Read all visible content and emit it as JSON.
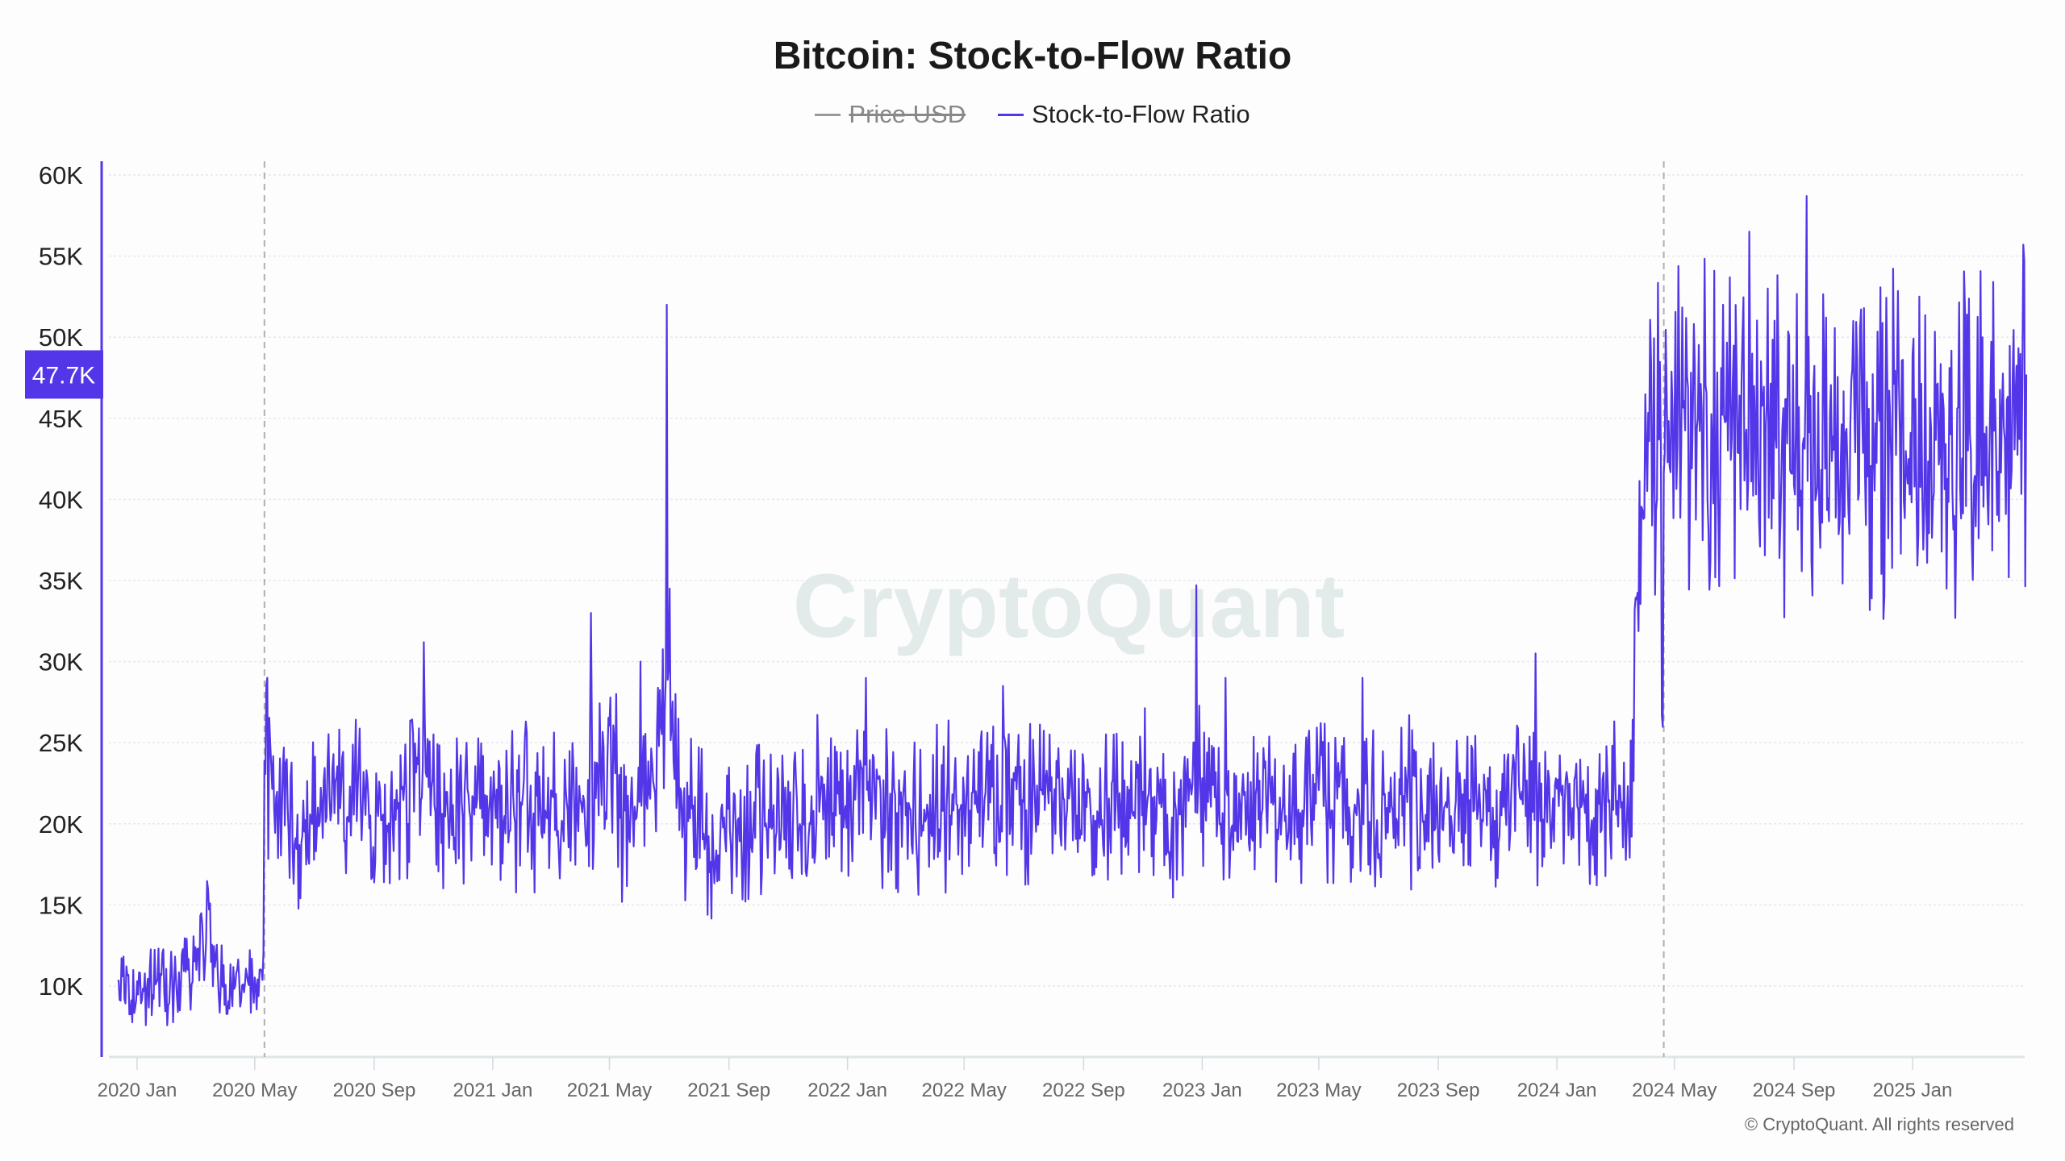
{
  "chart_data": {
    "type": "line",
    "title": "Bitcoin: Stock-to-Flow Ratio",
    "legend": [
      {
        "name": "Price USD",
        "color": "#9a9a9a",
        "hidden": true
      },
      {
        "name": "Stock-to-Flow Ratio",
        "color": "#5236e8",
        "hidden": false
      }
    ],
    "legend_placement": "top-center",
    "ylim": [
      5600,
      61000
    ],
    "y_ticks": [
      10000,
      15000,
      20000,
      25000,
      30000,
      35000,
      40000,
      45000,
      50000,
      55000,
      60000
    ],
    "y_tick_labels": [
      "10K",
      "15K",
      "20K",
      "25K",
      "30K",
      "35K",
      "40K",
      "45K",
      "50K",
      "55K",
      "60K"
    ],
    "x_range": [
      "2019-12-12",
      "2025-04-28"
    ],
    "x_ticks": [
      "2020-01-01",
      "2020-05-01",
      "2020-09-01",
      "2021-01-01",
      "2021-05-01",
      "2021-09-01",
      "2022-01-01",
      "2022-05-01",
      "2022-09-01",
      "2023-01-01",
      "2023-05-01",
      "2023-09-01",
      "2024-01-01",
      "2024-05-01",
      "2024-09-01",
      "2025-01-01"
    ],
    "x_tick_labels": [
      "2020 Jan",
      "2020 May",
      "2020 Sep",
      "2021 Jan",
      "2021 May",
      "2021 Sep",
      "2022 Jan",
      "2022 May",
      "2022 Sep",
      "2023 Jan",
      "2023 May",
      "2023 Sep",
      "2024 Jan",
      "2024 May",
      "2024 Sep",
      "2025 Jan"
    ],
    "grid": true,
    "halving_markers": [
      "2020-05-11",
      "2024-04-20"
    ],
    "series_semimonthly": {
      "2019": [
        null,
        10000
      ],
      "2020": [
        9500,
        10200,
        9800,
        10300,
        11500,
        13500,
        9600,
        10200,
        9800,
        23500,
        20500,
        19000,
        20500,
        22000,
        20500,
        21500,
        20000,
        19500,
        21000,
        24000,
        22000,
        20000,
        21000,
        21500
      ],
      "2021": [
        20500,
        21000,
        22000,
        20000,
        21500,
        20000,
        21000,
        22500,
        26000,
        19000,
        21000,
        23000,
        28000,
        21000,
        20000,
        19000,
        20000,
        19500,
        21000,
        20000,
        21500,
        20000,
        22000,
        21000
      ],
      "2022": [
        20500,
        22000,
        21500,
        21000,
        20500,
        20000,
        21000,
        21500,
        20500,
        22000,
        21000,
        22500,
        21000,
        21500,
        22000,
        21000,
        21500,
        20000,
        21000,
        20500,
        22000,
        21500,
        21000,
        22500
      ],
      "2023": [
        21500,
        20500,
        21000,
        20000,
        21000,
        21500,
        20500,
        21000,
        22000,
        21000,
        20500,
        21500,
        20000,
        21000,
        21500,
        20500,
        21000,
        20500,
        21500,
        21000,
        20500,
        22000,
        21500,
        21000
      ],
      "2024": [
        20500,
        21500,
        20000,
        21500,
        21000,
        21000,
        45000,
        44000,
        45500,
        43000,
        44500,
        43000,
        44000,
        42500,
        43000,
        44500,
        43500,
        42000,
        44000,
        43000,
        45000,
        43500
      ],
      "2025": [
        44000,
        43000,
        44500,
        42500,
        43500,
        44500,
        43000,
        44500
      ]
    },
    "breaks": [
      [
        "2020-05-11",
        10000,
        24500
      ],
      [
        "2024-04-20",
        21500,
        46000
      ]
    ],
    "spikes": [
      [
        "2020-03-14",
        16000
      ],
      [
        "2020-05-14",
        29000
      ],
      [
        "2020-10-22",
        31200
      ],
      [
        "2020-12-05",
        25000
      ],
      [
        "2021-04-12",
        33000
      ],
      [
        "2021-06-02",
        30000
      ],
      [
        "2021-06-29",
        52000
      ],
      [
        "2021-07-02",
        34500
      ],
      [
        "2022-01-20",
        29000
      ],
      [
        "2022-06-10",
        28500
      ],
      [
        "2022-12-26",
        34700
      ],
      [
        "2023-01-25",
        29000
      ],
      [
        "2023-06-15",
        29000
      ],
      [
        "2023-12-10",
        30500
      ],
      [
        "2024-06-20",
        52000
      ],
      [
        "2024-07-17",
        56500
      ],
      [
        "2024-08-05",
        53000
      ],
      [
        "2024-09-14",
        58700
      ],
      [
        "2024-11-01",
        51000
      ],
      [
        "2025-01-08",
        52500
      ],
      [
        "2025-04-25",
        55700
      ],
      [
        "2025-02-05",
        34500
      ],
      [
        "2025-04-10",
        35200
      ]
    ],
    "last_value": 47700,
    "last_value_label": "47.7K",
    "last_date": "2025-04-28"
  },
  "watermark": "CryptoQuant",
  "copyright": "© CryptoQuant. All rights reserved"
}
